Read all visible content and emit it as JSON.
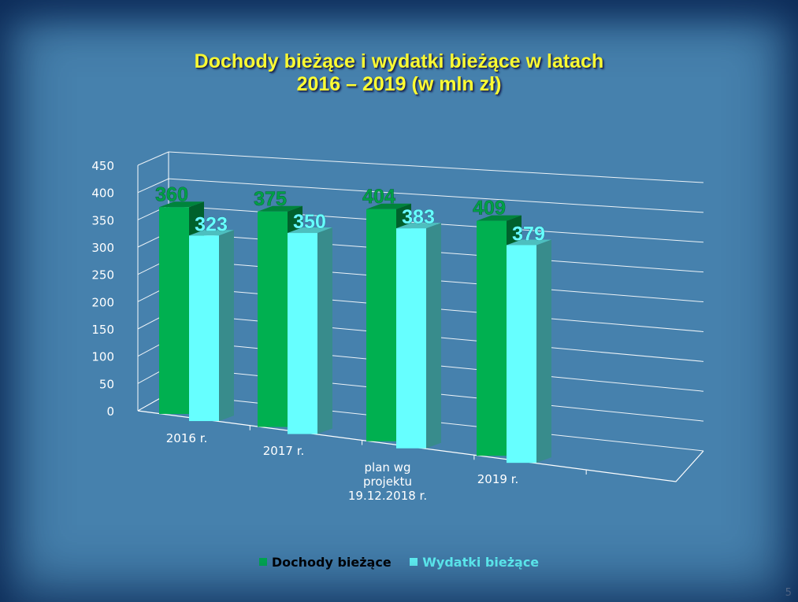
{
  "slide": {
    "title_line1": "Dochody bieżące i wydatki bieżące w latach",
    "title_line2": "2016 – 2019 (w mln zł)",
    "number": "5"
  },
  "colors": {
    "series1": "#00b050",
    "series2": "#66ffff",
    "title": "#ffff33"
  },
  "chart_data": {
    "type": "bar",
    "title": "Dochody bieżące i wydatki bieżące w latach 2016 – 2019 (w mln zł)",
    "categories": [
      "2016 r.",
      "2017 r.",
      "plan wg\nprojektu\n19.12.2018 r.",
      "2019 r."
    ],
    "series": [
      {
        "name": "Dochody bieżące",
        "values": [
          360,
          375,
          404,
          409
        ],
        "color": "#00b050"
      },
      {
        "name": "Wydatki bieżące",
        "values": [
          323,
          350,
          383,
          379
        ],
        "color": "#66ffff"
      }
    ],
    "ylim": [
      0,
      450
    ],
    "yticks": [
      0,
      50,
      100,
      150,
      200,
      250,
      300,
      350,
      400,
      450
    ],
    "grid": true,
    "legend": "bottom",
    "style": "3d-clustered-column"
  }
}
